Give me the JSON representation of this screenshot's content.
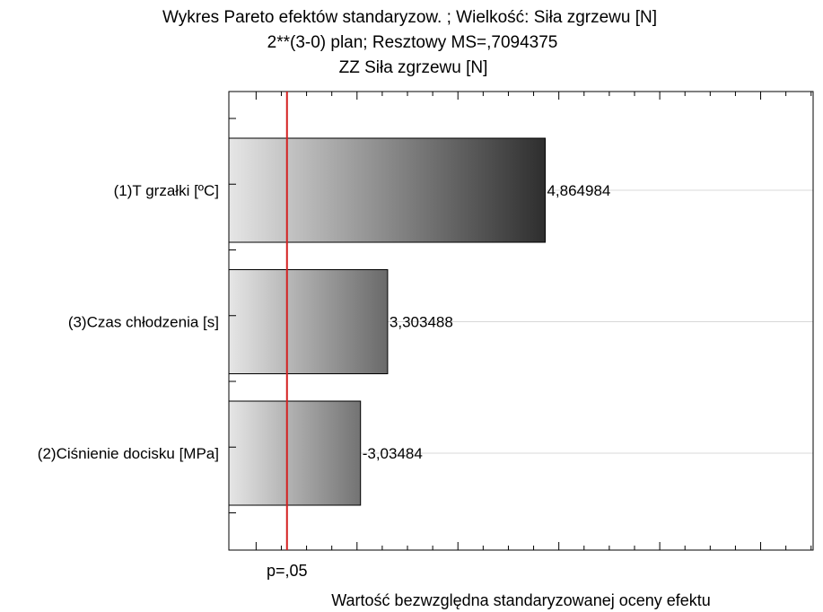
{
  "chart_data": {
    "type": "bar",
    "orientation": "horizontal",
    "title": [
      "Wykres Pareto efektów standaryzow.  ; Wielkość: Siła zgrzewu [N]",
      "2**(3-0) plan; Resztowy MS=,7094375",
      "ZZ Siła zgrzewu [N]"
    ],
    "xlabel": "Wartość bezwzględna standaryzowanej oceny efektu",
    "ylabel": "",
    "categories": [
      "(1)T grzałki [ºC]",
      "(3)Czas chłodzenia [s]",
      "(2)Ciśnienie docisku [MPa]"
    ],
    "values": [
      4.864984,
      3.303488,
      3.03484
    ],
    "value_labels": [
      "4,864984",
      "3,303488",
      "-3,03484"
    ],
    "xlim": [
      1.73,
      7.52
    ],
    "reference_line": {
      "value": 2.306,
      "label": "p=,05",
      "color": "#d42020"
    },
    "grid": true,
    "bar_gradient": {
      "start": "#e6e6e6",
      "end_at_max": "#2e2e2e"
    }
  }
}
